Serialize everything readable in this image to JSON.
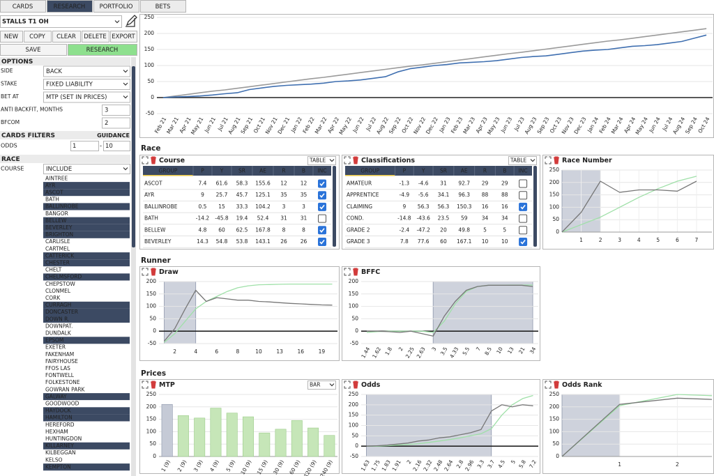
{
  "tabs": [
    {
      "label": "CARDS"
    },
    {
      "label": "RESEARCH",
      "active": true
    },
    {
      "label": "PORTFOLIO"
    },
    {
      "label": "BETS"
    }
  ],
  "sidebar": {
    "strategy": "STALLS T1 OH",
    "buttons": [
      "NEW",
      "COPY",
      "CLEAR",
      "DELETE",
      "EXPORT"
    ],
    "save": "SAVE",
    "research": "RESEARCH",
    "options_title": "OPTIONS",
    "options": [
      {
        "label": "SIDE",
        "value": "BACK"
      },
      {
        "label": "STAKE",
        "value": "FIXED LIABILITY"
      },
      {
        "label": "BET AT",
        "value": "MTP (SET IN PRICES)"
      },
      {
        "label": "ANTI BACKFIT, MONTHS",
        "value": "3"
      },
      {
        "label": "BFCOM",
        "value": "2"
      }
    ],
    "filters_title": "CARDS FILTERS",
    "guidance": "GUIDANCE",
    "odds_label": "ODDS",
    "odds_min": "1",
    "odds_sep": "-",
    "odds_max": "10",
    "race_title": "RACE",
    "course_label": "COURSE",
    "course_mode": "INCLUDE",
    "courses": [
      {
        "name": "AINTREE",
        "selected": false
      },
      {
        "name": "AYR",
        "selected": true
      },
      {
        "name": "ASCOT",
        "selected": true
      },
      {
        "name": "BATH",
        "selected": false
      },
      {
        "name": "BALLINROBE",
        "selected": true
      },
      {
        "name": "BANGOR",
        "selected": false
      },
      {
        "name": "BELLEW",
        "selected": true
      },
      {
        "name": "BEVERLEY",
        "selected": true
      },
      {
        "name": "BRIGHTON",
        "selected": true
      },
      {
        "name": "CARLISLE",
        "selected": false
      },
      {
        "name": "CARTMEL",
        "selected": false
      },
      {
        "name": "CATTERICK",
        "selected": true
      },
      {
        "name": "CHESTER",
        "selected": true
      },
      {
        "name": "CHELT",
        "selected": false
      },
      {
        "name": "CHELMSFORD",
        "selected": true
      },
      {
        "name": "CHEPSTOW",
        "selected": false
      },
      {
        "name": "CLONMEL",
        "selected": false
      },
      {
        "name": "CORK",
        "selected": false
      },
      {
        "name": "CURRAGH",
        "selected": true
      },
      {
        "name": "DONCASTER",
        "selected": true
      },
      {
        "name": "DOWN R.",
        "selected": true
      },
      {
        "name": "DOWNPAT.",
        "selected": false
      },
      {
        "name": "DUNDALK",
        "selected": false
      },
      {
        "name": "EPSOM",
        "selected": true
      },
      {
        "name": "EXETER",
        "selected": false
      },
      {
        "name": "FAKENHAM",
        "selected": false
      },
      {
        "name": "FAIRYHOUSE",
        "selected": false
      },
      {
        "name": "FFOS LAS",
        "selected": false
      },
      {
        "name": "FONTWELL",
        "selected": false
      },
      {
        "name": "FOLKESTONE",
        "selected": false
      },
      {
        "name": "GOWRAN PARK",
        "selected": false
      },
      {
        "name": "GALWAY",
        "selected": true
      },
      {
        "name": "GOODWOOD",
        "selected": false
      },
      {
        "name": "HAYDOCK",
        "selected": true
      },
      {
        "name": "HAMILTON",
        "selected": true
      },
      {
        "name": "HEREFORD",
        "selected": false
      },
      {
        "name": "HEXHAM",
        "selected": false
      },
      {
        "name": "HUNTINGDON",
        "selected": false
      },
      {
        "name": "KILLARNEY",
        "selected": true
      },
      {
        "name": "KILBEGGAN",
        "selected": false
      },
      {
        "name": "KELSO",
        "selected": false
      },
      {
        "name": "KEMPTON",
        "selected": true
      }
    ]
  },
  "sections": [
    "Race",
    "Runner",
    "Prices"
  ],
  "tables": [
    {
      "title": "Course",
      "view": "TABLE",
      "columns": [
        "GROUP",
        "P",
        "Y",
        "SR",
        "AE",
        "R",
        "B",
        "INC"
      ],
      "rows": [
        {
          "cells": [
            "ASCOT",
            "7.4",
            "61.6",
            "58.3",
            "155.6",
            "12",
            "12"
          ],
          "inc": true
        },
        {
          "cells": [
            "AYR",
            "9",
            "25.7",
            "45.7",
            "125.1",
            "35",
            "35"
          ],
          "inc": true
        },
        {
          "cells": [
            "BALLINROBE",
            "0.5",
            "15",
            "33.3",
            "104.2",
            "3",
            "3"
          ],
          "inc": true
        },
        {
          "cells": [
            "BATH",
            "-14.2",
            "-45.8",
            "19.4",
            "52.4",
            "31",
            "31"
          ],
          "inc": false
        },
        {
          "cells": [
            "BELLEW",
            "4.8",
            "60",
            "62.5",
            "167.8",
            "8",
            "8"
          ],
          "inc": true
        },
        {
          "cells": [
            "BEVERLEY",
            "14.3",
            "54.8",
            "53.8",
            "143.1",
            "26",
            "26"
          ],
          "inc": true
        }
      ]
    },
    {
      "title": "Classifications",
      "view": "TABLE",
      "columns": [
        "GROUP",
        "P",
        "Y",
        "SR",
        "AE",
        "R",
        "B",
        "INC"
      ],
      "rows": [
        {
          "cells": [
            "AMATEUR",
            "-1.3",
            "-4.6",
            "31",
            "92.7",
            "29",
            "29"
          ],
          "inc": false
        },
        {
          "cells": [
            "APPRENTICE",
            "-4.9",
            "-5.6",
            "34.1",
            "96.3",
            "88",
            "88"
          ],
          "inc": false
        },
        {
          "cells": [
            "CLAIMING",
            "9",
            "56.3",
            "56.3",
            "150.3",
            "16",
            "16"
          ],
          "inc": true
        },
        {
          "cells": [
            "COND.",
            "-14.8",
            "-43.6",
            "23.5",
            "59",
            "34",
            "34"
          ],
          "inc": false
        },
        {
          "cells": [
            "GRADE 2",
            "-2.4",
            "-47.2",
            "20",
            "49.8",
            "5",
            "5"
          ],
          "inc": false
        },
        {
          "cells": [
            "GRADE 3",
            "7.8",
            "77.6",
            "60",
            "167.1",
            "10",
            "10"
          ],
          "inc": true
        }
      ]
    }
  ],
  "chart_data": [
    {
      "type": "line",
      "categories": [
        "Feb 21",
        "Mar 21",
        "Apr 21",
        "May 21",
        "Jun 21",
        "Jul 21",
        "Aug 21",
        "Sep 21",
        "Oct 21",
        "Nov 21",
        "Dec 21",
        "Jan 22",
        "Feb 22",
        "Mar 22",
        "Apr 22",
        "May 22",
        "Jun 22",
        "Jul 22",
        "Aug 22",
        "Sep 22",
        "Oct 22",
        "Nov 22",
        "Dec 22",
        "Jan 23",
        "Feb 23",
        "Mar 23",
        "Apr 23",
        "May 23",
        "Jun 23",
        "Jul 23",
        "Aug 23",
        "Sep 23",
        "Oct 23",
        "Nov 23",
        "Dec 23",
        "Jan 24",
        "Feb 24",
        "Mar 24",
        "Apr 24",
        "May 24",
        "Jun 24",
        "Jul 24",
        "Aug 24",
        "Sep 24",
        "Oct 24"
      ],
      "series": [
        {
          "color": "#9a9a9a",
          "values": [
            0,
            5,
            10,
            15,
            20,
            24,
            29,
            34,
            39,
            44,
            49,
            54,
            59,
            63,
            68,
            73,
            78,
            83,
            88,
            93,
            98,
            102,
            107,
            112,
            117,
            122,
            127,
            132,
            137,
            141,
            146,
            151,
            156,
            161,
            166,
            171,
            176,
            180,
            185,
            190,
            195,
            200,
            205,
            210,
            215
          ]
        },
        {
          "color": "#3f6fb0",
          "values": [
            0,
            2,
            3,
            5,
            8,
            12,
            15,
            25,
            30,
            35,
            38,
            40,
            42,
            45,
            50,
            52,
            55,
            60,
            65,
            80,
            90,
            95,
            100,
            103,
            108,
            110,
            112,
            115,
            120,
            125,
            128,
            130,
            135,
            140,
            145,
            148,
            150,
            155,
            160,
            162,
            165,
            170,
            175,
            185,
            195
          ]
        }
      ],
      "ylim": [
        -50,
        250
      ],
      "yticks": [
        -50,
        0,
        50,
        100,
        150,
        200,
        250
      ],
      "grid": true
    },
    {
      "type": "line",
      "title": "Race Number",
      "x": [
        0,
        1,
        2,
        3,
        4,
        5,
        6,
        7
      ],
      "xlim": [
        0,
        7.8
      ],
      "xticks": [
        1,
        2,
        3,
        4,
        5,
        6,
        7
      ],
      "series": [
        {
          "color": "#9fe0a8",
          "values": [
            0,
            30,
            60,
            100,
            140,
            175,
            205,
            225
          ]
        },
        {
          "color": "#777777",
          "values": [
            0,
            80,
            205,
            160,
            170,
            170,
            165,
            205
          ]
        }
      ],
      "ylim": [
        0,
        250
      ],
      "yticks": [
        0,
        50,
        100,
        150,
        200,
        250
      ],
      "grid": true,
      "highlight": [
        0,
        2
      ],
      "highlight_color": "#c5cad6"
    },
    {
      "type": "line",
      "title": "Draw",
      "categories": [
        null,
        "2",
        null,
        "4",
        null,
        "6",
        null,
        "8",
        null,
        "10",
        null,
        "13",
        null,
        "16",
        null,
        "19",
        null
      ],
      "series": [
        {
          "color": "#9fe0a8",
          "values": [
            -45,
            -10,
            40,
            90,
            120,
            140,
            160,
            175,
            183,
            187,
            188,
            189,
            190,
            190,
            190,
            190,
            190
          ]
        },
        {
          "color": "#777777",
          "values": [
            -40,
            10,
            90,
            165,
            120,
            135,
            130,
            125,
            125,
            120,
            118,
            115,
            112,
            110,
            108,
            106,
            105
          ]
        }
      ],
      "ylim": [
        -50,
        200
      ],
      "yticks": [
        -50,
        0,
        50,
        100,
        150,
        200
      ],
      "grid": true,
      "highlight": [
        0,
        3
      ],
      "highlight_color": "#c5cad6"
    },
    {
      "type": "line",
      "title": "BFFC",
      "categories": [
        "1.44",
        "1.62",
        "1.8",
        "2",
        "2.25",
        "2.63",
        "3",
        "3.5",
        "4.33",
        "5.5",
        "7",
        "8.5",
        "10",
        "13",
        "21",
        "34"
      ],
      "series": [
        {
          "color": "#9fe0a8",
          "values": [
            -5,
            -2,
            0,
            0,
            0,
            0,
            -5,
            40,
            110,
            160,
            180,
            185,
            185,
            186,
            186,
            186
          ]
        },
        {
          "color": "#777777",
          "values": [
            0,
            0,
            -2,
            -5,
            0,
            -10,
            -20,
            60,
            120,
            165,
            180,
            185,
            185,
            185,
            185,
            180
          ]
        }
      ],
      "ylim": [
        -50,
        200
      ],
      "yticks": [
        -50,
        0,
        50,
        100,
        150,
        200
      ],
      "grid": true,
      "highlight": [
        6,
        15
      ],
      "highlight_color": "#c5cad6"
    },
    {
      "type": "bar",
      "title": "MTP",
      "view": "BAR",
      "categories": [
        "1 (9)",
        "2 (9)",
        "3 (9)",
        "4 (9)",
        "5 (9)",
        "10 (9)",
        "15 (9)",
        "30 (9)",
        "60 (9)",
        "120 (9)",
        "240 (9)"
      ],
      "values": [
        210,
        165,
        155,
        195,
        175,
        160,
        95,
        110,
        145,
        115,
        85
      ],
      "color": "#c6e6b8",
      "ylim": [
        0,
        250
      ],
      "yticks": [
        0,
        50,
        100,
        150,
        200,
        250
      ],
      "grid": true,
      "highlight": [
        0,
        0
      ],
      "highlight_color": "#c5cad6"
    },
    {
      "type": "line",
      "title": "Odds",
      "categories": [
        "1.63",
        "1.75",
        "1.83",
        "1.91",
        "2",
        "2.16",
        "2.32",
        "2.48",
        "2.64",
        "2.8",
        "2.96",
        "3.3",
        "3.7",
        "4.5",
        "5",
        "5.8",
        "7.2"
      ],
      "series": [
        {
          "color": "#9fe0a8",
          "values": [
            0,
            0,
            2,
            5,
            8,
            12,
            18,
            25,
            32,
            40,
            50,
            60,
            85,
            150,
            200,
            230,
            245
          ]
        },
        {
          "color": "#777777",
          "values": [
            0,
            2,
            5,
            10,
            15,
            25,
            30,
            40,
            45,
            55,
            65,
            80,
            170,
            200,
            190,
            200,
            195
          ]
        }
      ],
      "ylim": [
        -50,
        250
      ],
      "yticks": [
        -50,
        0,
        50,
        100,
        150,
        200,
        250
      ],
      "grid": true,
      "highlight": [
        0,
        12
      ],
      "highlight_color": "#c5cad6"
    },
    {
      "type": "line",
      "title": "Odds Rank",
      "x": [
        0,
        1,
        2,
        2.6
      ],
      "xlim": [
        0,
        2.6
      ],
      "xticks": [
        1,
        2
      ],
      "series": [
        {
          "color": "#9fe0a8",
          "values": [
            0,
            205,
            250,
            245
          ]
        },
        {
          "color": "#777777",
          "values": [
            0,
            210,
            235,
            230
          ]
        }
      ],
      "ylim": [
        0,
        250
      ],
      "yticks": [
        0,
        50,
        100,
        150,
        200,
        250
      ],
      "grid": true,
      "highlight": [
        0,
        1
      ],
      "highlight_color": "#c5cad6"
    }
  ]
}
